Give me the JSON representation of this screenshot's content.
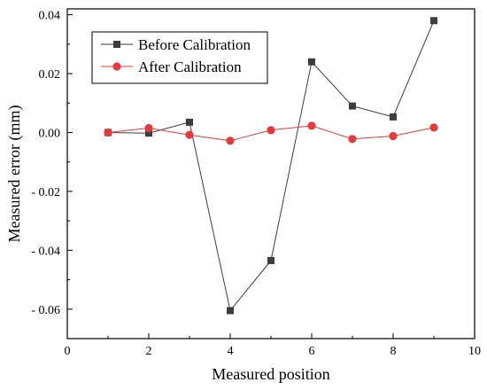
{
  "chart_data": {
    "type": "line",
    "title": "",
    "xlabel": "Measured position",
    "ylabel": "Measured error (mm)",
    "xlim": [
      0,
      10
    ],
    "ylim": [
      -0.07,
      0.042
    ],
    "x_ticks": [
      0,
      2,
      4,
      6,
      8,
      10
    ],
    "x_tick_labels": [
      "0",
      "2",
      "4",
      "6",
      "8",
      "10"
    ],
    "y_ticks": [
      -0.06,
      -0.04,
      -0.02,
      0.0,
      0.02,
      0.04
    ],
    "y_tick_labels": [
      "- 0.06",
      "- 0.04",
      "- 0.02",
      "0.00",
      "0.02",
      "0.04"
    ],
    "grid": false,
    "legend_position": "top-left",
    "x": [
      1,
      2,
      3,
      4,
      5,
      6,
      7,
      8,
      9
    ],
    "series": [
      {
        "name": "Before Calibration",
        "marker": "square",
        "color": "#3d3d3d",
        "values": [
          0.0,
          -0.0002,
          0.0035,
          -0.0605,
          -0.0435,
          0.024,
          0.009,
          0.0053,
          0.038
        ]
      },
      {
        "name": "After Calibration",
        "marker": "circle",
        "color": "#e8393c",
        "values": [
          0.0,
          0.0015,
          -0.0008,
          -0.0028,
          0.0008,
          0.0023,
          -0.0022,
          -0.0012,
          0.0017
        ]
      }
    ]
  }
}
